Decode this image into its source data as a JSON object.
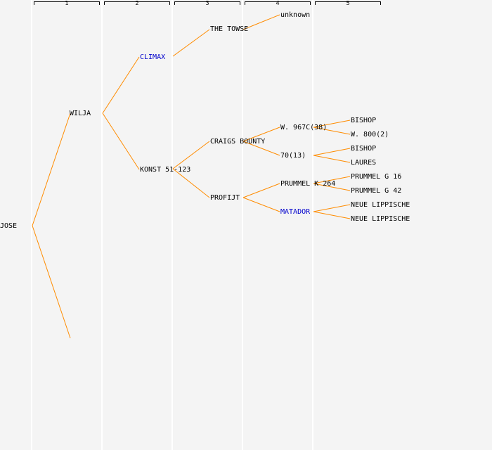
{
  "generations": [
    "1",
    "2",
    "3",
    "4",
    "5"
  ],
  "colors": {
    "link": "#ff8c00",
    "text": "#000000",
    "highlight": "#0000cc",
    "background": "#f4f4f4"
  },
  "nodes": {
    "root": "JOSE",
    "sire": "WILJA",
    "sire_sire": "CLIMAX",
    "sire_dam": "KONST 51-123",
    "sss": "THE TOWSE",
    "sdsire": "CRAIGS BOUNTY",
    "sddam": "PROFIJT",
    "ssss": "unknown",
    "sdss": "W. 967C(38)",
    "sdsd": "70(13)",
    "sdds": "PRUMMEL K 264",
    "sddd": "MATADOR",
    "g5_1": "BISHOP",
    "g5_2": "W. 800(2)",
    "g5_3": "BISHOP",
    "g5_4": "LAURES",
    "g5_5": "PRUMMEL G 16",
    "g5_6": "PRUMMEL G 42",
    "g5_7": "NEUE LIPPISCHE",
    "g5_8": "NEUE LIPPISCHE"
  }
}
